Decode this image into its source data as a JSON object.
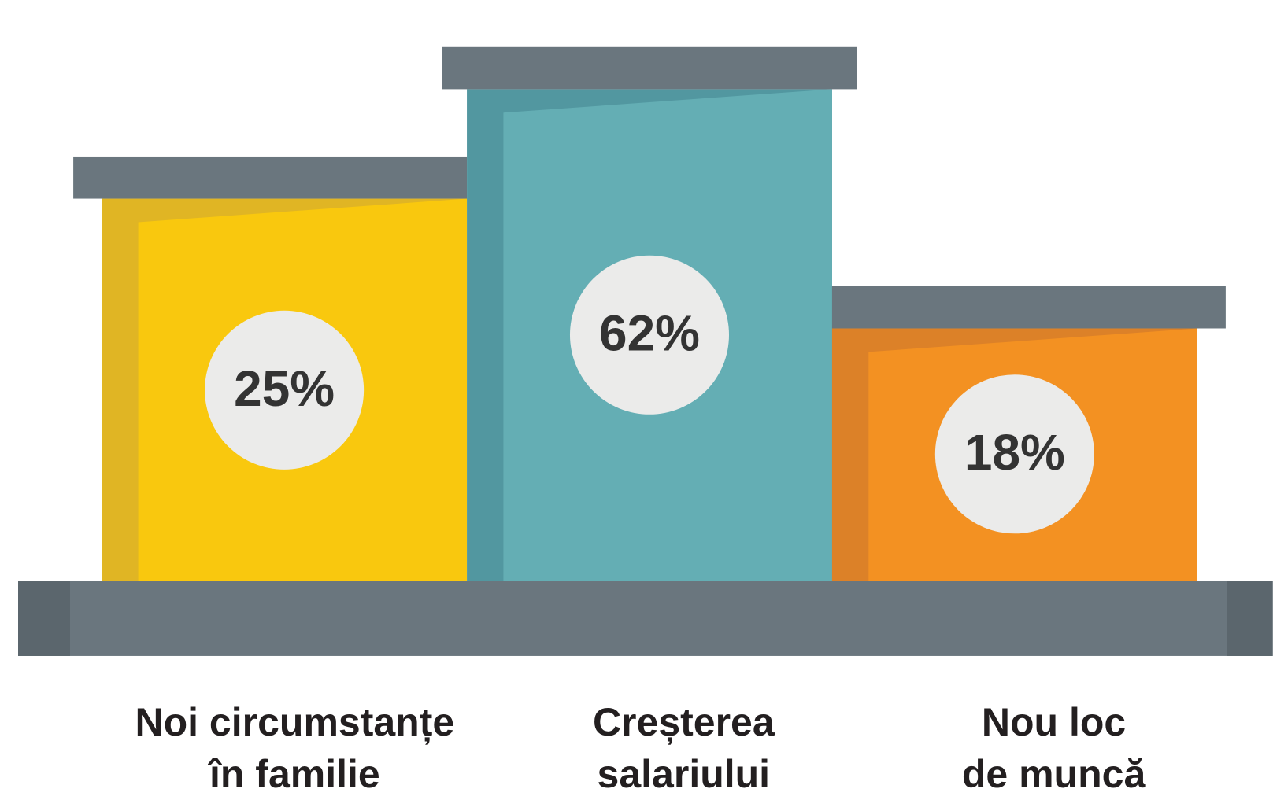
{
  "chart_data": {
    "type": "podium",
    "categories": [
      "Noi circumstanțe\nîn familie",
      "Creșterea\nsalariului",
      "Nou loc\nde muncă"
    ],
    "values": [
      25,
      62,
      18
    ],
    "value_labels": [
      "25%",
      "62%",
      "18%"
    ],
    "colors": [
      "#f9c80e",
      "#64aeb4",
      "#f39122"
    ],
    "shade_colors": [
      "#e0b524",
      "#5297a0",
      "#dc8128"
    ]
  }
}
